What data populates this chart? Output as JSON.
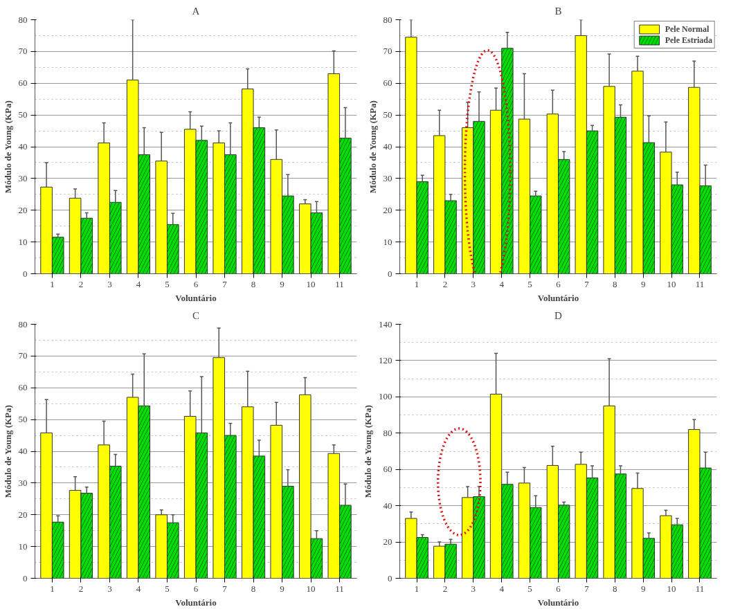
{
  "chart_data": [
    {
      "type": "bar",
      "title": "A",
      "xlabel": "Voluntário",
      "ylabel": "Módulo de Young (KPa)",
      "categories": [
        "1",
        "2",
        "3",
        "4",
        "5",
        "6",
        "7",
        "8",
        "9",
        "10",
        "11"
      ],
      "series": [
        {
          "color": "#ffff00",
          "values": [
            27.3,
            23.8,
            41.2,
            61,
            35.5,
            45.5,
            41.2,
            58.2,
            36,
            22,
            63
          ],
          "errors": [
            [
              27.3,
              35
            ],
            [
              23.8,
              26.7
            ],
            [
              41.2,
              47.5
            ],
            [
              61,
              80
            ],
            [
              35.5,
              44.5
            ],
            [
              45.5,
              51
            ],
            [
              41.2,
              45
            ],
            [
              58.2,
              64.5
            ],
            [
              36,
              45.3
            ],
            [
              22,
              23.3
            ],
            [
              63,
              70.2
            ]
          ]
        },
        {
          "color": "#00e000",
          "values": [
            11.5,
            17.5,
            22.5,
            37.5,
            15.5,
            42,
            37.5,
            46,
            24.5,
            19.2,
            42.7
          ],
          "errors": [
            [
              11.5,
              12.5
            ],
            [
              17.5,
              19.2
            ],
            [
              22.5,
              26.2
            ],
            [
              37.5,
              46
            ],
            [
              15.5,
              19
            ],
            [
              42,
              46.5
            ],
            [
              37.5,
              47.5
            ],
            [
              46,
              49.3
            ],
            [
              24.5,
              31.2
            ],
            [
              19.2,
              22.7
            ],
            [
              42.7,
              52.3
            ]
          ]
        }
      ],
      "ylim": [
        0,
        80
      ],
      "yticks": [
        0,
        10,
        20,
        30,
        40,
        50,
        60,
        70,
        80
      ],
      "grid": "y"
    },
    {
      "type": "bar",
      "title": "B",
      "xlabel": "Voluntário",
      "ylabel": "Módulo de Young (KPa)",
      "categories": [
        "1",
        "2",
        "3",
        "4",
        "5",
        "6",
        "7",
        "8",
        "9",
        "10",
        "11"
      ],
      "series": [
        {
          "name": "Pele Normal",
          "color": "#ffff00",
          "values": [
            74.5,
            43.5,
            46,
            51.5,
            48.7,
            50.3,
            75,
            59,
            63.8,
            38.3,
            58.7
          ],
          "errors": [
            [
              74.5,
              80
            ],
            [
              43.5,
              51.5
            ],
            [
              46,
              54
            ],
            [
              51.5,
              58.5
            ],
            [
              48.7,
              63
            ],
            [
              50.3,
              57.8
            ],
            [
              75,
              80
            ],
            [
              59,
              69.2
            ],
            [
              63.8,
              68.5
            ],
            [
              38.3,
              47.8
            ],
            [
              58.7,
              67
            ]
          ]
        },
        {
          "name": "Pele Estriada",
          "color": "#00e000",
          "values": [
            29,
            23,
            48,
            71,
            24.5,
            36,
            45,
            49.3,
            41.3,
            28,
            27.7
          ],
          "errors": [
            [
              29,
              31
            ],
            [
              23,
              25
            ],
            [
              48,
              57.3
            ],
            [
              71,
              76
            ],
            [
              24.5,
              26
            ],
            [
              36,
              38.5
            ],
            [
              45,
              46.7
            ],
            [
              49.3,
              53.2
            ],
            [
              41.3,
              49.7
            ],
            [
              28,
              32
            ],
            [
              27.7,
              34.2
            ]
          ]
        }
      ],
      "ylim": [
        0,
        80
      ],
      "yticks": [
        0,
        10,
        20,
        30,
        40,
        50,
        60,
        70,
        80
      ],
      "grid": "y",
      "legend": "top right"
    },
    {
      "type": "bar",
      "title": "C",
      "xlabel": "Voluntário",
      "ylabel": "Módulo de Young (KPa)",
      "categories": [
        "1",
        "2",
        "3",
        "4",
        "5",
        "6",
        "7",
        "8",
        "9",
        "10",
        "11"
      ],
      "series": [
        {
          "color": "#ffff00",
          "values": [
            45.8,
            27.7,
            42,
            57,
            20,
            51,
            69.5,
            54,
            48.2,
            57.8,
            39.3
          ],
          "errors": [
            [
              45.8,
              56.3
            ],
            [
              27.7,
              32
            ],
            [
              42,
              49.5
            ],
            [
              57,
              64.3
            ],
            [
              20,
              21.5
            ],
            [
              51,
              59
            ],
            [
              69.5,
              78.8
            ],
            [
              54,
              65.2
            ],
            [
              48.2,
              55.4
            ],
            [
              57.8,
              63.2
            ],
            [
              39.3,
              42
            ]
          ]
        },
        {
          "color": "#00e000",
          "values": [
            17.7,
            26.8,
            35.3,
            54.3,
            17.5,
            45.8,
            45,
            38.5,
            29,
            12.5,
            23
          ],
          "errors": [
            [
              17.7,
              19.7
            ],
            [
              26.8,
              28.7
            ],
            [
              35.3,
              39
            ],
            [
              54.3,
              70.7
            ],
            [
              17.5,
              20
            ],
            [
              45.8,
              63.5
            ],
            [
              45,
              48.8
            ],
            [
              38.5,
              43.5
            ],
            [
              29,
              34.2
            ],
            [
              12.5,
              15
            ],
            [
              23,
              29.7
            ]
          ]
        }
      ],
      "ylim": [
        0,
        80
      ],
      "yticks": [
        0,
        10,
        20,
        30,
        40,
        50,
        60,
        70,
        80
      ],
      "grid": "y"
    },
    {
      "type": "bar",
      "title": "D",
      "xlabel": "Voluntário",
      "ylabel": "Módulo de Young (KPa)",
      "categories": [
        "1",
        "2",
        "3",
        "4",
        "5",
        "6",
        "7",
        "8",
        "9",
        "10",
        "11"
      ],
      "series": [
        {
          "color": "#ffff00",
          "values": [
            33,
            17.7,
            44.5,
            101.5,
            52.5,
            62.2,
            62.8,
            95,
            49.5,
            34.5,
            82
          ],
          "errors": [
            [
              33,
              36.5
            ],
            [
              17.7,
              20
            ],
            [
              44.5,
              50.5
            ],
            [
              101.5,
              124
            ],
            [
              52.5,
              61
            ],
            [
              62.2,
              72.8
            ],
            [
              62.8,
              69.5
            ],
            [
              95,
              121
            ],
            [
              49.5,
              58
            ],
            [
              34.5,
              37.5
            ],
            [
              82,
              87.5
            ]
          ]
        },
        {
          "color": "#00e000",
          "values": [
            22.5,
            18.8,
            45,
            51.8,
            39,
            40.3,
            55.3,
            57.5,
            22,
            29.5,
            60.8
          ],
          "errors": [
            [
              22.5,
              24
            ],
            [
              18.8,
              21.5
            ],
            [
              45,
              50.5
            ],
            [
              51.8,
              58.5
            ],
            [
              39,
              45.5
            ],
            [
              40.3,
              42
            ],
            [
              55.3,
              62
            ],
            [
              57.5,
              62
            ],
            [
              22,
              25
            ],
            [
              29.5,
              33
            ],
            [
              60.8,
              69.5
            ]
          ]
        }
      ],
      "ylim": [
        0,
        140
      ],
      "yticks": [
        0,
        20,
        40,
        60,
        80,
        100,
        120,
        140
      ],
      "grid": "y"
    }
  ]
}
